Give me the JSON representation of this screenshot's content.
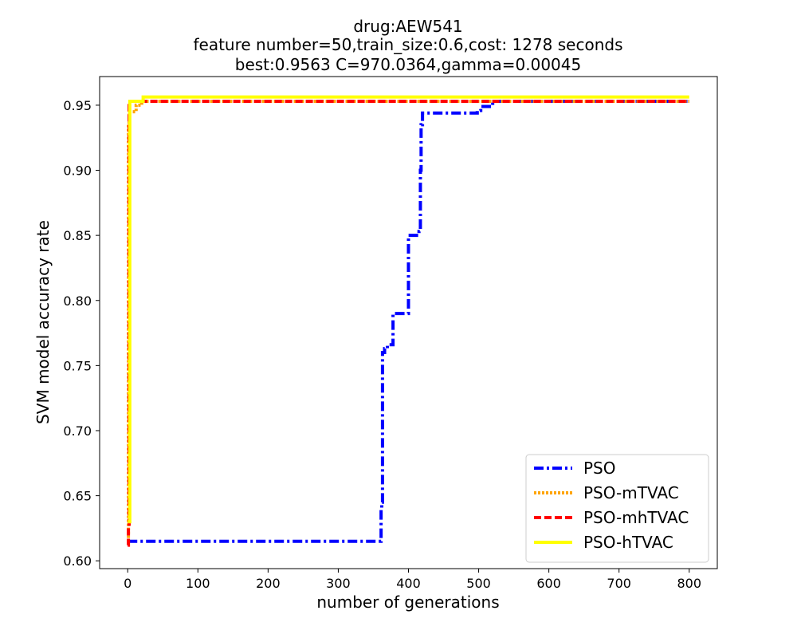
{
  "chart_data": {
    "type": "line",
    "title_lines": [
      "drug:AEW541",
      "feature number=50,train_size:0.6,cost: 1278 seconds",
      "best:0.9563  C=970.0364,gamma=0.00045"
    ],
    "xlabel": "number of generations",
    "ylabel": "SVM model accuracy rate",
    "xlim": [
      -40,
      840
    ],
    "ylim": [
      0.594,
      0.972
    ],
    "xticks": [
      0,
      100,
      200,
      300,
      400,
      500,
      600,
      700,
      800
    ],
    "xtick_labels": [
      "0",
      "100",
      "200",
      "300",
      "400",
      "500",
      "600",
      "700",
      "800"
    ],
    "yticks": [
      0.6,
      0.65,
      0.7,
      0.75,
      0.8,
      0.85,
      0.9,
      0.95
    ],
    "ytick_labels": [
      "0.60",
      "0.65",
      "0.70",
      "0.75",
      "0.80",
      "0.85",
      "0.90",
      "0.95"
    ],
    "grid": false,
    "legend_position": "lower right",
    "series": [
      {
        "name": "PSO",
        "color": "#0000ff",
        "style": "dashdot",
        "x": [
          0,
          360,
          361,
          362,
          363,
          366,
          370,
          375,
          378,
          380,
          398,
          400,
          402,
          415,
          417,
          418,
          420,
          440,
          495,
          498,
          500,
          503,
          510,
          520,
          800
        ],
        "y": [
          0.615,
          0.615,
          0.64,
          0.645,
          0.76,
          0.763,
          0.766,
          0.766,
          0.79,
          0.79,
          0.79,
          0.85,
          0.85,
          0.853,
          0.9,
          0.935,
          0.944,
          0.944,
          0.944,
          0.946,
          0.946,
          0.949,
          0.949,
          0.953,
          0.953
        ]
      },
      {
        "name": "PSO-mTVAC",
        "color": "#ffa500",
        "style": "dotted",
        "x": [
          0,
          1,
          2,
          10,
          12,
          20,
          800
        ],
        "y": [
          0.615,
          0.935,
          0.945,
          0.945,
          0.95,
          0.953,
          0.953
        ]
      },
      {
        "name": "PSO-mhTVAC",
        "color": "#ff0000",
        "style": "dashed",
        "x": [
          0,
          1,
          2,
          20,
          800
        ],
        "y": [
          0.612,
          0.625,
          0.953,
          0.953,
          0.953
        ]
      },
      {
        "name": "PSO-hTVAC",
        "color": "#ffff00",
        "style": "solid",
        "x": [
          0,
          2,
          3,
          20,
          22,
          800
        ],
        "y": [
          0.63,
          0.63,
          0.953,
          0.953,
          0.9563,
          0.9563
        ]
      }
    ]
  }
}
